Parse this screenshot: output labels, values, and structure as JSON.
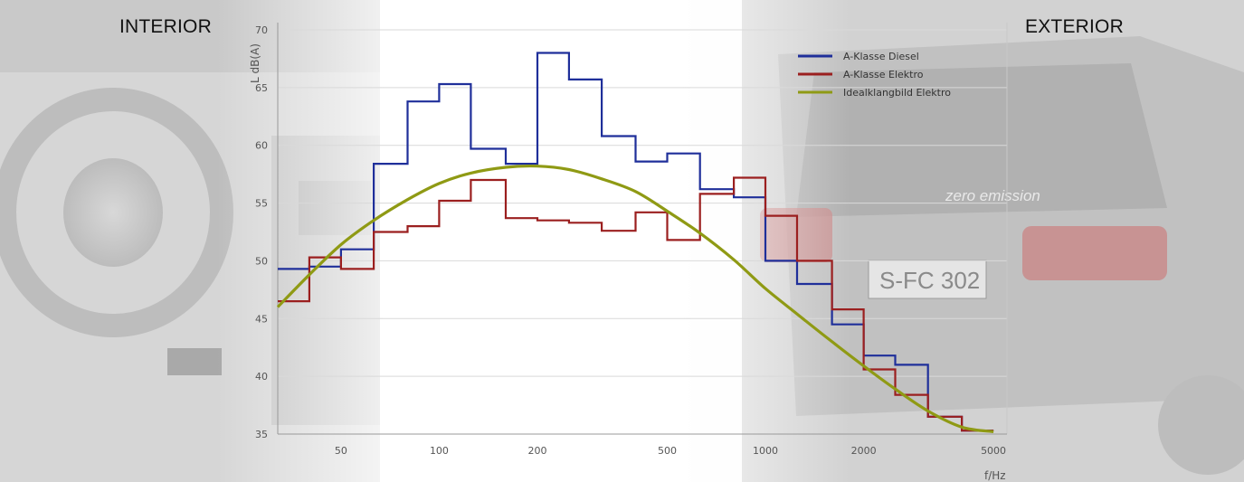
{
  "labels": {
    "interior": "INTERIOR",
    "exterior": "EXTERIOR"
  },
  "chart_data": {
    "type": "line",
    "title": "",
    "xlabel": "f/Hz",
    "ylabel": "L dB(A)",
    "xscale": "log",
    "xlim": [
      32,
      5500
    ],
    "ylim": [
      35,
      70
    ],
    "xticks": [
      50,
      100,
      200,
      500,
      1000,
      2000,
      5000
    ],
    "yticks": [
      35,
      40,
      45,
      50,
      55,
      60,
      65,
      70
    ],
    "grid": true,
    "legend_position": "top-right",
    "series": [
      {
        "name": "A-Klasse Diesel",
        "color": "#1f2f9a",
        "style": "step",
        "bands": [
          {
            "from": 32,
            "to": 40,
            "value": 49.3
          },
          {
            "from": 40,
            "to": 50,
            "value": 49.5
          },
          {
            "from": 50,
            "to": 63,
            "value": 51.0
          },
          {
            "from": 63,
            "to": 80,
            "value": 58.4
          },
          {
            "from": 80,
            "to": 100,
            "value": 63.8
          },
          {
            "from": 100,
            "to": 125,
            "value": 65.3
          },
          {
            "from": 125,
            "to": 160,
            "value": 59.7
          },
          {
            "from": 160,
            "to": 200,
            "value": 58.4
          },
          {
            "from": 200,
            "to": 250,
            "value": 68.0
          },
          {
            "from": 250,
            "to": 315,
            "value": 65.7
          },
          {
            "from": 315,
            "to": 400,
            "value": 60.8
          },
          {
            "from": 400,
            "to": 500,
            "value": 58.6
          },
          {
            "from": 500,
            "to": 630,
            "value": 59.3
          },
          {
            "from": 630,
            "to": 800,
            "value": 56.2
          },
          {
            "from": 800,
            "to": 1000,
            "value": 55.5
          },
          {
            "from": 1000,
            "to": 1250,
            "value": 50.0
          },
          {
            "from": 1250,
            "to": 1600,
            "value": 48.0
          },
          {
            "from": 1600,
            "to": 2000,
            "value": 44.5
          },
          {
            "from": 2000,
            "to": 2500,
            "value": 41.8
          },
          {
            "from": 2500,
            "to": 3150,
            "value": 41.0
          },
          {
            "from": 3150,
            "to": 4000,
            "value": 36.5
          },
          {
            "from": 4000,
            "to": 5000,
            "value": 35.3
          }
        ]
      },
      {
        "name": "A-Klasse Elektro",
        "color": "#9b1f1f",
        "style": "step",
        "bands": [
          {
            "from": 32,
            "to": 40,
            "value": 46.5
          },
          {
            "from": 40,
            "to": 50,
            "value": 50.3
          },
          {
            "from": 50,
            "to": 63,
            "value": 49.3
          },
          {
            "from": 63,
            "to": 80,
            "value": 52.5
          },
          {
            "from": 80,
            "to": 100,
            "value": 53.0
          },
          {
            "from": 100,
            "to": 125,
            "value": 55.2
          },
          {
            "from": 125,
            "to": 160,
            "value": 57.0
          },
          {
            "from": 160,
            "to": 200,
            "value": 53.7
          },
          {
            "from": 200,
            "to": 250,
            "value": 53.5
          },
          {
            "from": 250,
            "to": 315,
            "value": 53.3
          },
          {
            "from": 315,
            "to": 400,
            "value": 52.6
          },
          {
            "from": 400,
            "to": 500,
            "value": 54.2
          },
          {
            "from": 500,
            "to": 630,
            "value": 51.8
          },
          {
            "from": 630,
            "to": 800,
            "value": 55.8
          },
          {
            "from": 800,
            "to": 1000,
            "value": 57.2
          },
          {
            "from": 1000,
            "to": 1250,
            "value": 53.9
          },
          {
            "from": 1250,
            "to": 1600,
            "value": 50.0
          },
          {
            "from": 1600,
            "to": 2000,
            "value": 45.8
          },
          {
            "from": 2000,
            "to": 2500,
            "value": 40.6
          },
          {
            "from": 2500,
            "to": 3150,
            "value": 38.4
          },
          {
            "from": 3150,
            "to": 4000,
            "value": 36.5
          },
          {
            "from": 4000,
            "to": 5000,
            "value": 35.3
          }
        ]
      },
      {
        "name": "Idealklangbild Elektro",
        "color": "#8f9a14",
        "style": "smooth",
        "x": [
          32,
          40,
          50,
          63,
          80,
          100,
          125,
          160,
          200,
          250,
          315,
          400,
          500,
          630,
          800,
          1000,
          1250,
          1600,
          2000,
          2500,
          3150,
          4000,
          5000
        ],
        "y": [
          46.0,
          48.8,
          51.4,
          53.5,
          55.3,
          56.7,
          57.6,
          58.1,
          58.2,
          57.9,
          57.1,
          56.0,
          54.3,
          52.4,
          50.1,
          47.6,
          45.4,
          43.0,
          40.9,
          38.9,
          37.0,
          35.6,
          35.2
        ]
      }
    ]
  }
}
